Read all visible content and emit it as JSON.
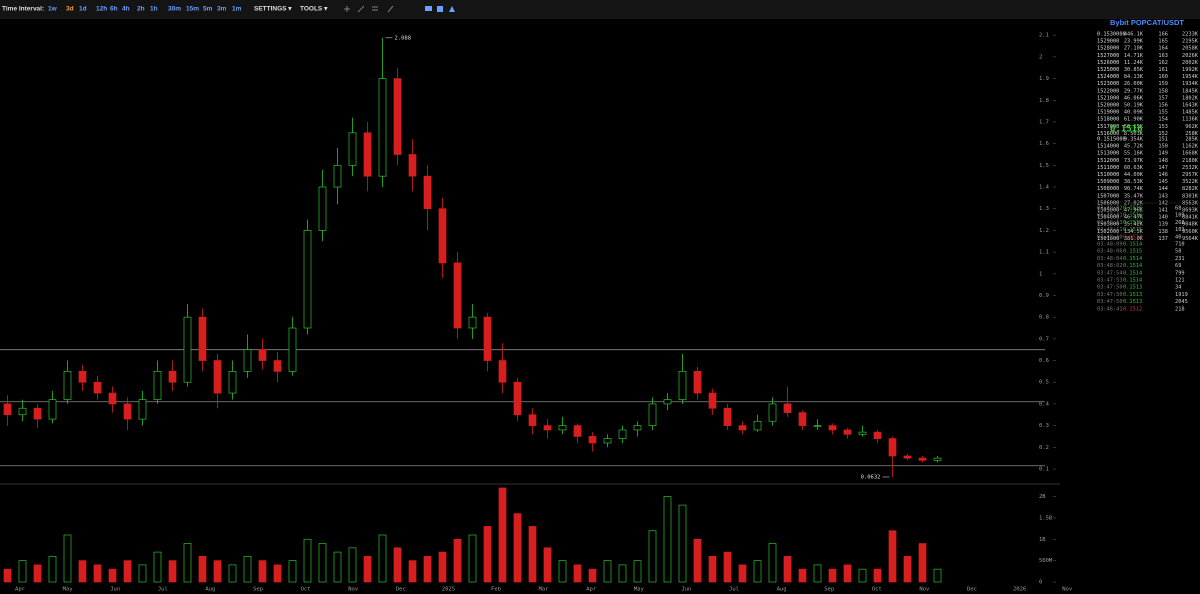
{
  "toolbar": {
    "label": "Time Interval:",
    "intervals": [
      "1w",
      "3d",
      "1d",
      "12h",
      "6h",
      "4h",
      "2h",
      "1h",
      "30m",
      "15m",
      "5m",
      "3m",
      "1m"
    ],
    "active": 1,
    "menus": [
      "SETTINGS ▾",
      "TOOLS ▾"
    ]
  },
  "chart_data": {
    "type": "candlestick",
    "candles": [
      [
        0.4,
        0.44,
        0.3,
        0.35
      ],
      [
        0.35,
        0.42,
        0.32,
        0.38
      ],
      [
        0.38,
        0.4,
        0.29,
        0.33
      ],
      [
        0.33,
        0.46,
        0.31,
        0.42
      ],
      [
        0.42,
        0.6,
        0.4,
        0.55
      ],
      [
        0.55,
        0.58,
        0.46,
        0.5
      ],
      [
        0.5,
        0.53,
        0.42,
        0.45
      ],
      [
        0.45,
        0.48,
        0.36,
        0.4
      ],
      [
        0.4,
        0.43,
        0.28,
        0.33
      ],
      [
        0.33,
        0.46,
        0.3,
        0.42
      ],
      [
        0.42,
        0.6,
        0.4,
        0.55
      ],
      [
        0.55,
        0.6,
        0.46,
        0.5
      ],
      [
        0.5,
        0.86,
        0.48,
        0.8
      ],
      [
        0.8,
        0.84,
        0.55,
        0.6
      ],
      [
        0.6,
        0.63,
        0.38,
        0.45
      ],
      [
        0.45,
        0.6,
        0.42,
        0.55
      ],
      [
        0.55,
        0.72,
        0.52,
        0.65
      ],
      [
        0.65,
        0.7,
        0.56,
        0.6
      ],
      [
        0.6,
        0.64,
        0.5,
        0.55
      ],
      [
        0.55,
        0.8,
        0.53,
        0.75
      ],
      [
        0.75,
        1.25,
        0.72,
        1.2
      ],
      [
        1.2,
        1.48,
        1.15,
        1.4
      ],
      [
        1.4,
        1.58,
        1.32,
        1.5
      ],
      [
        1.5,
        1.72,
        1.45,
        1.65
      ],
      [
        1.65,
        1.7,
        1.38,
        1.45
      ],
      [
        1.45,
        2.088,
        1.4,
        1.9
      ],
      [
        1.9,
        1.95,
        1.5,
        1.55
      ],
      [
        1.55,
        1.62,
        1.38,
        1.45
      ],
      [
        1.45,
        1.5,
        1.2,
        1.3
      ],
      [
        1.3,
        1.35,
        0.98,
        1.05
      ],
      [
        1.05,
        1.1,
        0.7,
        0.75
      ],
      [
        0.75,
        0.86,
        0.7,
        0.8
      ],
      [
        0.8,
        0.82,
        0.55,
        0.6
      ],
      [
        0.6,
        0.68,
        0.45,
        0.5
      ],
      [
        0.5,
        0.52,
        0.32,
        0.35
      ],
      [
        0.35,
        0.38,
        0.26,
        0.3
      ],
      [
        0.3,
        0.33,
        0.24,
        0.28
      ],
      [
        0.28,
        0.34,
        0.26,
        0.3
      ],
      [
        0.3,
        0.31,
        0.22,
        0.25
      ],
      [
        0.25,
        0.27,
        0.18,
        0.22
      ],
      [
        0.22,
        0.26,
        0.2,
        0.24
      ],
      [
        0.24,
        0.3,
        0.22,
        0.28
      ],
      [
        0.28,
        0.32,
        0.25,
        0.3
      ],
      [
        0.3,
        0.43,
        0.28,
        0.4
      ],
      [
        0.4,
        0.45,
        0.37,
        0.42
      ],
      [
        0.42,
        0.63,
        0.4,
        0.55
      ],
      [
        0.55,
        0.57,
        0.42,
        0.45
      ],
      [
        0.45,
        0.47,
        0.35,
        0.38
      ],
      [
        0.38,
        0.4,
        0.28,
        0.3
      ],
      [
        0.3,
        0.32,
        0.26,
        0.28
      ],
      [
        0.28,
        0.35,
        0.27,
        0.32
      ],
      [
        0.32,
        0.43,
        0.3,
        0.4
      ],
      [
        0.4,
        0.48,
        0.34,
        0.36
      ],
      [
        0.36,
        0.37,
        0.28,
        0.3
      ],
      [
        0.3,
        0.33,
        0.28,
        0.3
      ],
      [
        0.3,
        0.31,
        0.26,
        0.28
      ],
      [
        0.28,
        0.29,
        0.24,
        0.26
      ],
      [
        0.26,
        0.3,
        0.25,
        0.27
      ],
      [
        0.27,
        0.28,
        0.22,
        0.24
      ],
      [
        0.24,
        0.25,
        0.0632,
        0.16
      ],
      [
        0.16,
        0.17,
        0.14,
        0.15
      ],
      [
        0.15,
        0.16,
        0.13,
        0.14
      ],
      [
        0.14,
        0.16,
        0.13,
        0.15
      ]
    ],
    "volumes": [
      300000000.0,
      500000000.0,
      400000000.0,
      600000000.0,
      1100000000.0,
      500000000.0,
      400000000.0,
      300000000.0,
      500000000.0,
      400000000.0,
      700000000.0,
      500000000.0,
      900000000.0,
      600000000.0,
      500000000.0,
      400000000.0,
      600000000.0,
      500000000.0,
      400000000.0,
      500000000.0,
      1000000000.0,
      900000000.0,
      700000000.0,
      800000000.0,
      600000000.0,
      1100000000.0,
      800000000.0,
      500000000.0,
      600000000.0,
      700000000.0,
      1000000000.0,
      1100000000.0,
      1300000000.0,
      2200000000.0,
      1600000000.0,
      1300000000.0,
      800000000.0,
      500000000.0,
      400000000.0,
      300000000.0,
      500000000.0,
      400000000.0,
      500000000.0,
      1200000000.0,
      2000000000.0,
      1800000000.0,
      1000000000.0,
      600000000.0,
      700000000.0,
      400000000.0,
      500000000.0,
      900000000.0,
      600000000.0,
      300000000.0,
      400000000.0,
      300000000.0,
      400000000.0,
      300000000.0,
      300000000.0,
      1200000000.0,
      600000000.0,
      900000000.0,
      300000000.0
    ],
    "up_color": "#2bc42b",
    "down_color": "#d81f1f",
    "ylim": [
      0.04,
      2.17
    ],
    "yticks": [
      2.1,
      2,
      1.9,
      1.8,
      1.7,
      1.6,
      1.5,
      1.4,
      1.3,
      1.2,
      1.1,
      1,
      0.9,
      0.8,
      0.7,
      0.6,
      0.5,
      0.4,
      0.3,
      0.2,
      0.1
    ],
    "y2lim": [
      0,
      2200000000.0
    ],
    "y2ticks": [
      {
        "value": 2000000000.0,
        "label": "2B"
      },
      {
        "value": 1500000000.0,
        "label": "1.5B"
      },
      {
        "value": 1000000000.0,
        "label": "1B"
      },
      {
        "value": 500000000.0,
        "label": "500M"
      },
      0
    ],
    "levels": [
      0.65,
      0.41,
      0.115
    ],
    "level_color": "#8a8a8a",
    "highlights": [
      [
        25,
        1
      ],
      [
        59,
        2
      ]
    ],
    "x_labels": [
      "Apr",
      "May",
      "Jun",
      "Jul",
      "Aug",
      "Sep",
      "Oct",
      "Nov",
      "Dec",
      "2025",
      "Feb",
      "Mar",
      "Apr",
      "May",
      "Jun",
      "Jul",
      "Aug",
      "Sep",
      "Oct",
      "Nov",
      "Dec",
      "2026",
      "Nov"
    ]
  },
  "orderbook": {
    "title": "Bybit POPCAT/USDT",
    "asks": [
      [
        "0.1530000",
        "446.1K",
        "166",
        "2233K"
      ],
      [
        "1529000",
        "23.99K",
        "165",
        "2195K"
      ],
      [
        "1528000",
        "27.10K",
        "164",
        "2058K"
      ],
      [
        "1527000",
        "14.71K",
        "163",
        "2026K"
      ],
      [
        "1526000",
        "11.24K",
        "162",
        "2002K"
      ],
      [
        "1525000",
        "30.85K",
        "161",
        "1992K"
      ],
      [
        "1524000",
        "84.13K",
        "160",
        "1954K"
      ],
      [
        "1523000",
        "26.00K",
        "159",
        "1934K"
      ],
      [
        "1522000",
        "29.77K",
        "158",
        "1845K"
      ],
      [
        "1521000",
        "46.06K",
        "157",
        "1802K"
      ],
      [
        "1520000",
        "50.19K",
        "156",
        "1643K"
      ],
      [
        "1519000",
        "40.09K",
        "155",
        "1485K"
      ],
      [
        "1518000",
        "61.90K",
        "154",
        "1136K"
      ],
      [
        "1517000",
        "56.15K",
        "153",
        "962K"
      ],
      [
        "1516000",
        "8.503K",
        "152",
        "258K"
      ]
    ],
    "last": "0.1516",
    "bids": [
      [
        "0.1515000",
        "9.354K",
        "151",
        "285K"
      ],
      [
        "1514000",
        "45.72K",
        "150",
        "1162K"
      ],
      [
        "1513000",
        "55.16K",
        "149",
        "1668K"
      ],
      [
        "1512000",
        "73.97K",
        "148",
        "2180K"
      ],
      [
        "1511000",
        "60.63K",
        "147",
        "2532K"
      ],
      [
        "1510000",
        "44.00K",
        "146",
        "2957K"
      ],
      [
        "1509000",
        "38.53K",
        "145",
        "3522K"
      ],
      [
        "1508000",
        "90.74K",
        "144",
        "8282K"
      ],
      [
        "1507000",
        "35.47K",
        "143",
        "8301K"
      ],
      [
        "1506000",
        "27.02K",
        "142",
        "8563K"
      ],
      [
        "1505000",
        "47.96K",
        "141",
        "8693K"
      ],
      [
        "1504000",
        "46.47K",
        "140",
        "8841K"
      ],
      [
        "1503000",
        "35.42K",
        "139",
        "9048K"
      ],
      [
        "1502000",
        "134.5K",
        "138",
        "9560K"
      ],
      [
        "1501000",
        "381.0K",
        "137",
        "9564K"
      ]
    ],
    "trades": [
      [
        "03:49:02",
        "0.1516",
        "68",
        "#2bc42b"
      ],
      [
        "03:48:41",
        "0.1516",
        "109",
        "#2bc42b"
      ],
      [
        "03:48:13",
        "0.1515",
        "268",
        "#2bc42b"
      ],
      [
        "03:48:11",
        "0.1515",
        "103",
        "#2bc42b"
      ],
      [
        "03:48:10",
        "0.1514",
        "40",
        "#e03030"
      ],
      [
        "03:48:09",
        "0.1514",
        "710",
        "#2bc42b"
      ],
      [
        "03:48:06",
        "0.1515",
        "58",
        "#2bc42b"
      ],
      [
        "03:48:04",
        "0.1514",
        "231",
        "#2bc42b"
      ],
      [
        "03:48:02",
        "0.1514",
        "69",
        "#2bc42b"
      ],
      [
        "03:47:54",
        "0.1514",
        "799",
        "#2bc42b"
      ],
      [
        "03:47:53",
        "0.1514",
        "121",
        "#2bc42b"
      ],
      [
        "03:47:50",
        "0.1513",
        "34",
        "#2bc42b"
      ],
      [
        "03:47:50",
        "0.1513",
        "1919",
        "#2bc42b"
      ],
      [
        "03:47:50",
        "0.1513",
        "2045",
        "#2bc42b"
      ],
      [
        "03:46:41",
        "0.1512",
        "218",
        "#e03030"
      ]
    ]
  }
}
